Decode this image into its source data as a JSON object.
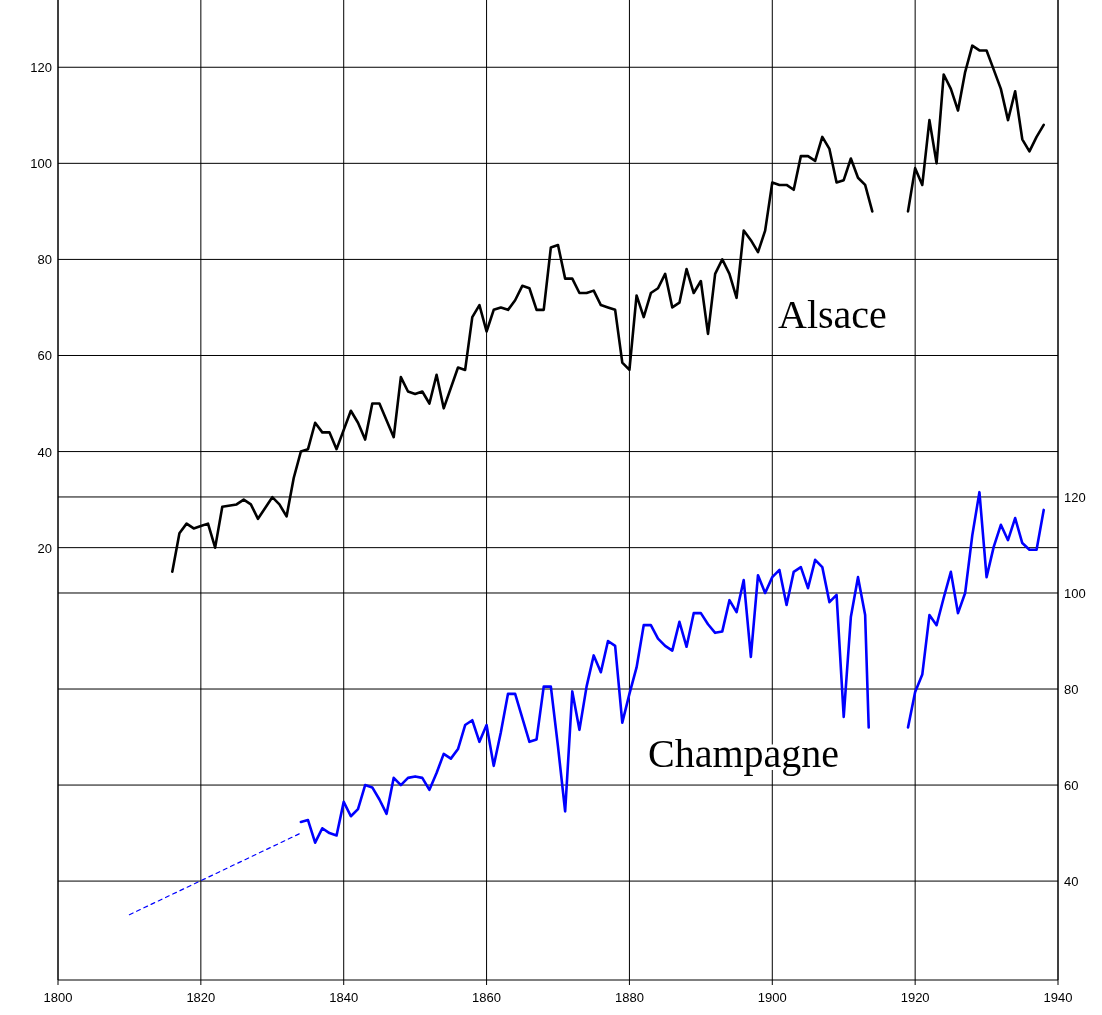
{
  "chart_data": {
    "type": "line",
    "xlim": [
      1800,
      1940
    ],
    "xticks": [
      1800,
      1820,
      1840,
      1860,
      1880,
      1900,
      1920,
      1940
    ],
    "ylim": [
      -70,
      134
    ],
    "yticks": [
      20,
      40,
      60,
      80,
      100,
      120
    ],
    "y2lim": [
      19.4,
      223.5
    ],
    "y2ticks": [
      40,
      60,
      80,
      100,
      120
    ],
    "grid": true,
    "legend": false,
    "marker": "none",
    "line_style": "solid",
    "series": [
      {
        "name": "Alsace",
        "color": "#000000",
        "x": [
          1816,
          1817,
          1818,
          1819,
          1820,
          1821,
          1822,
          1823,
          1825,
          1826,
          1827,
          1828,
          1830,
          1831,
          1832,
          1833,
          1834,
          1835,
          1836,
          1837,
          1838,
          1839,
          1841,
          1842,
          1843,
          1844,
          1845,
          1847,
          1848,
          1849,
          1850,
          1851,
          1852,
          1853,
          1854,
          1856,
          1857,
          1858,
          1859,
          1860,
          1861,
          1862,
          1863,
          1864,
          1865,
          1866,
          1867,
          1868,
          1869,
          1870,
          1871,
          1872,
          1873,
          1874,
          1875,
          1876,
          1877,
          1878,
          1879,
          1880,
          1881,
          1882,
          1883,
          1884,
          1885,
          1886,
          1887,
          1888,
          1889,
          1890,
          1891,
          1892,
          1893,
          1894,
          1895,
          1896,
          1897,
          1898,
          1899,
          1900,
          1901,
          1902,
          1903,
          1904,
          1905,
          1906,
          1907,
          1908,
          1909,
          1910,
          1911,
          1912,
          1913,
          1914,
          1916,
          1919,
          1920,
          1921,
          1922,
          1923,
          1924,
          1925,
          1926,
          1927,
          1928,
          1929,
          1930,
          1931,
          1932,
          1933,
          1934,
          1935,
          1936,
          1937,
          1938
        ],
        "values": [
          15,
          23,
          25,
          24,
          24.5,
          25,
          20,
          28.5,
          29,
          30,
          29,
          26,
          30.5,
          29,
          26.5,
          34.5,
          40,
          40.5,
          46,
          44,
          44,
          40.5,
          48.5,
          46,
          42.5,
          50,
          50,
          43,
          55.5,
          52.5,
          52,
          52.5,
          50,
          56,
          49,
          57.5,
          57,
          68,
          70.5,
          65,
          69.5,
          70,
          69.5,
          71.5,
          74.5,
          74,
          69.5,
          69.5,
          82.5,
          83,
          76,
          76,
          73,
          73,
          73.5,
          70.5,
          70,
          69.5,
          58.5,
          57,
          72.5,
          68,
          73,
          74,
          77,
          70,
          71,
          78,
          73,
          75.5,
          64.5,
          77,
          80,
          77,
          72,
          86,
          84,
          81.5,
          86,
          96,
          95.5,
          95.5,
          94.5,
          101.5,
          101.5,
          100.5,
          105.5,
          103,
          96,
          96.5,
          101,
          97,
          95.5,
          90,
          null,
          90,
          99,
          95.5,
          109,
          100,
          118.5,
          115.5,
          111,
          119,
          124.5,
          123.5,
          123.5,
          119.5,
          115.5,
          109,
          115,
          105,
          102.5,
          105.5,
          108
        ]
      },
      {
        "name": "Champagne",
        "color": "#0000ff",
        "axis": "y2",
        "x": [
          1834,
          1835,
          1836,
          1837,
          1838,
          1839,
          1840,
          1841,
          1842,
          1843,
          1844,
          1845,
          1846,
          1847,
          1848,
          1849,
          1850,
          1851,
          1852,
          1853,
          1854,
          1855,
          1856,
          1857,
          1858,
          1859,
          1860,
          1861,
          1862,
          1863,
          1864,
          1865,
          1866,
          1867,
          1868,
          1869,
          1870,
          1871,
          1872,
          1873,
          1874,
          1875,
          1876,
          1877,
          1878,
          1879,
          1880,
          1881,
          1882,
          1883,
          1884,
          1885,
          1886,
          1887,
          1888,
          1889,
          1890,
          1891,
          1892,
          1893,
          1894,
          1895,
          1896,
          1897,
          1898,
          1899,
          1900,
          1901,
          1902,
          1903,
          1904,
          1905,
          1906,
          1907,
          1908,
          1909,
          1910,
          1911,
          1912,
          1913,
          1913.5,
          1916,
          1919,
          1920,
          1921,
          1922,
          1923,
          1924,
          1925,
          1926,
          1927,
          1928,
          1929,
          1930,
          1931,
          1932,
          1933,
          1934,
          1935,
          1936,
          1937,
          1938
        ],
        "values": [
          52.3,
          52.7,
          48,
          51,
          50,
          49.5,
          56.5,
          53.5,
          55,
          60,
          59.5,
          57,
          54,
          61.5,
          60,
          61.5,
          61.8,
          61.5,
          59,
          62.5,
          66.5,
          65.5,
          67.5,
          72.5,
          73.5,
          69,
          72.5,
          64,
          71,
          79,
          79,
          74,
          69,
          69.5,
          80.5,
          80.5,
          68,
          54.5,
          79.5,
          71.5,
          80.5,
          87,
          83.5,
          90,
          89,
          73,
          79,
          84.5,
          93.3,
          93.3,
          90.5,
          89,
          88,
          94,
          88.8,
          95.8,
          95.8,
          93.5,
          91.7,
          92,
          98.5,
          96,
          102.7,
          86.7,
          103.7,
          100,
          103.3,
          104.8,
          97.5,
          104.4,
          105.4,
          101,
          106.9,
          105.4,
          98.1,
          99.6,
          74.2,
          95,
          103.3,
          95.4,
          72,
          null,
          72,
          79.4,
          83,
          95.4,
          93.3,
          99,
          104.4,
          95.8,
          100,
          112,
          121,
          103.3,
          109.6,
          114.2,
          111,
          115.6,
          110.4,
          109,
          109,
          117.3
        ]
      },
      {
        "color": "#0000ff",
        "axis": "y2",
        "line_style": "dashed",
        "x": [
          1810,
          1834
        ],
        "values": [
          33,
          50
        ]
      }
    ]
  }
}
